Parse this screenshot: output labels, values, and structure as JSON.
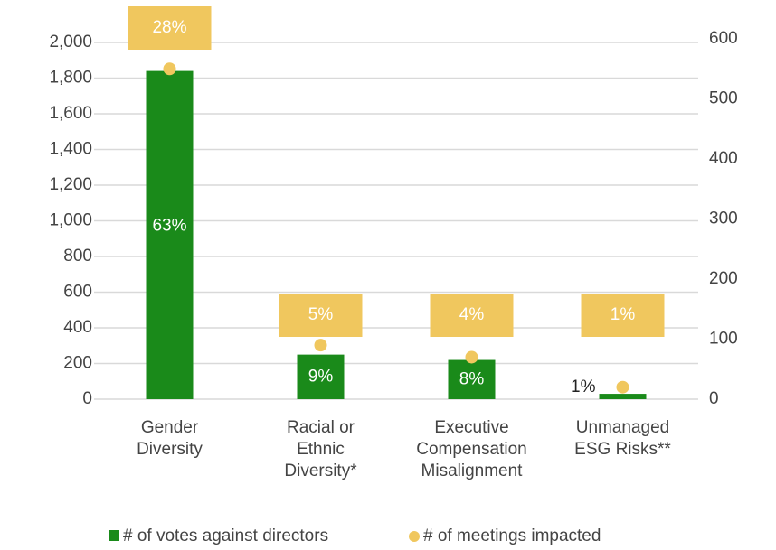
{
  "chart_data": {
    "type": "bar",
    "categories": [
      "Gender Diversity",
      "Racial or Ethnic Diversity*",
      "Executive Compensation Misalignment",
      "Unmanaged ESG Risks**"
    ],
    "series": [
      {
        "name": "# of votes against directors",
        "color": "#1a8a1a",
        "type": "bar",
        "values": [
          1840,
          250,
          220,
          30
        ],
        "annotations": [
          "63%",
          "9%",
          "8%",
          "1%"
        ]
      },
      {
        "name": "# of meetings impacted",
        "color": "#f0c75e",
        "type": "dot",
        "axis": "y2",
        "values": [
          550,
          90,
          70,
          20
        ],
        "annotations": [
          "28%",
          "5%",
          "4%",
          "1%"
        ]
      }
    ],
    "ylim": [
      0,
      2000
    ],
    "yticks": [
      0,
      200,
      400,
      600,
      800,
      {
        "value": 1000,
        "label": "1,000"
      },
      {
        "value": 1200,
        "label": "1,200"
      },
      {
        "value": 1400,
        "label": "1,400"
      },
      {
        "value": 1600,
        "label": "1,600"
      },
      {
        "value": 1800,
        "label": "1,800"
      },
      {
        "value": 2000,
        "label": "2,000"
      }
    ],
    "y2lim": [
      0,
      600
    ],
    "y2ticks": [
      0,
      100,
      200,
      300,
      400,
      500,
      600
    ],
    "grid": true
  }
}
